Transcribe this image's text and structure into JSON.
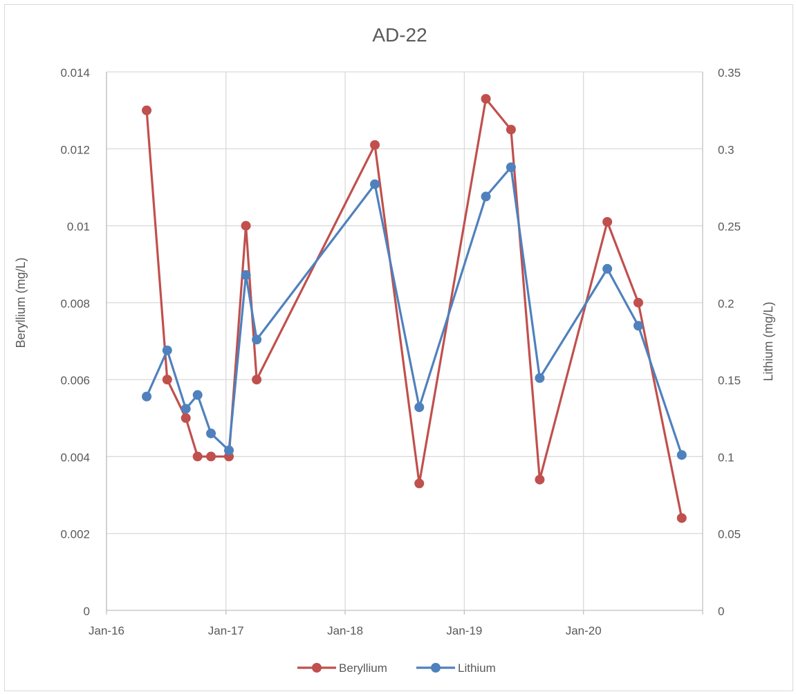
{
  "chart_data": {
    "type": "line",
    "title": "AD-22",
    "xlabel": "",
    "ylabel": "Beryllium (mg/L)",
    "y2label": "Lithium (mg/L)",
    "x_ticks": [
      "Jan-16",
      "Jan-17",
      "Jan-18",
      "Jan-19",
      "Jan-20"
    ],
    "x_tick_dates": [
      "2016-01-01",
      "2017-01-01",
      "2018-01-01",
      "2019-01-01",
      "2020-01-01"
    ],
    "xlim": [
      "2016-01-01",
      "2020-12-31"
    ],
    "ylim": [
      0,
      0.014
    ],
    "y_ticks": [
      "0",
      "0.002",
      "0.004",
      "0.006",
      "0.008",
      "0.01",
      "0.012",
      "0.014"
    ],
    "y2lim": [
      0,
      0.35
    ],
    "y2_ticks": [
      "0",
      "0.05",
      "0.1",
      "0.15",
      "0.2",
      "0.25",
      "0.3",
      "0.35"
    ],
    "grid": "vertical and horizontal",
    "legend_position": "bottom",
    "colors": {
      "beryllium": "#c0504d",
      "lithium": "#4f81bd",
      "grid": "#d9d9d9",
      "axis": "#bfbfbf",
      "text": "#595959"
    },
    "series": [
      {
        "name": "Beryllium",
        "axis": "left",
        "points": [
          [
            "2016-05-03",
            0.013
          ],
          [
            "2016-07-05",
            0.006
          ],
          [
            "2016-08-31",
            0.005
          ],
          [
            "2016-10-06",
            0.004
          ],
          [
            "2016-11-16",
            0.004
          ],
          [
            "2017-01-10",
            0.004
          ],
          [
            "2017-03-03",
            0.01
          ],
          [
            "2017-04-05",
            0.006
          ],
          [
            "2018-04-02",
            0.0121
          ],
          [
            "2018-08-16",
            0.0033
          ],
          [
            "2019-03-08",
            0.0133
          ],
          [
            "2019-05-24",
            0.0125
          ],
          [
            "2019-08-20",
            0.0034
          ],
          [
            "2020-03-14",
            0.0101
          ],
          [
            "2020-06-17",
            0.008
          ],
          [
            "2020-10-28",
            0.0024
          ]
        ]
      },
      {
        "name": "Lithium",
        "axis": "right",
        "points": [
          [
            "2016-05-03",
            0.139
          ],
          [
            "2016-07-05",
            0.169
          ],
          [
            "2016-08-31",
            0.131
          ],
          [
            "2016-10-06",
            0.14
          ],
          [
            "2016-11-16",
            0.115
          ],
          [
            "2017-01-10",
            0.104
          ],
          [
            "2017-03-03",
            0.218
          ],
          [
            "2017-04-05",
            0.176
          ],
          [
            "2018-04-02",
            0.277
          ],
          [
            "2018-08-16",
            0.132
          ],
          [
            "2019-03-08",
            0.269
          ],
          [
            "2019-05-24",
            0.288
          ],
          [
            "2019-08-20",
            0.151
          ],
          [
            "2020-03-14",
            0.222
          ],
          [
            "2020-06-17",
            0.185
          ],
          [
            "2020-10-28",
            0.101
          ]
        ]
      }
    ]
  }
}
